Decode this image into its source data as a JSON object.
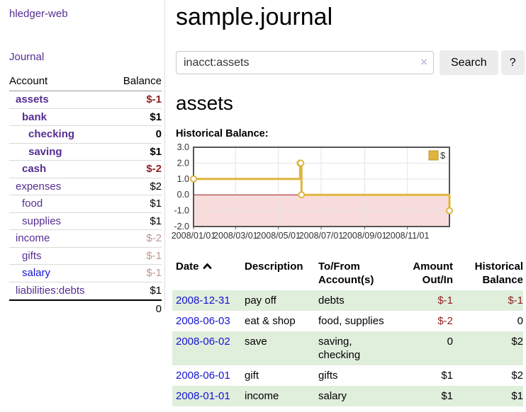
{
  "colors": {
    "link_purple": "#552e91",
    "link_blue": "#1414d2",
    "negative": "#8f1f1f",
    "dim_negative": "#c09494",
    "row_highlight": "#e0eedc",
    "button_bg": "#ececec",
    "clear_icon": "#cfc2e0"
  },
  "sidebar": {
    "app_title": "hledger-web",
    "journal_label": "Journal",
    "accounts_table": {
      "account_header": "Account",
      "balance_header": "Balance",
      "rows": [
        {
          "name": "assets",
          "indent": 1,
          "bold": true,
          "balance": "$-1",
          "negative": true
        },
        {
          "name": "bank",
          "indent": 2,
          "bold": true,
          "balance": "$1"
        },
        {
          "name": "checking",
          "indent": 3,
          "bold": true,
          "balance": "0"
        },
        {
          "name": "saving",
          "indent": 3,
          "bold": true,
          "balance": "$1"
        },
        {
          "name": "cash",
          "indent": 2,
          "bold": true,
          "balance": "$-2",
          "negative": true
        },
        {
          "name": "expenses",
          "indent": 1,
          "balance": "$2"
        },
        {
          "name": "food",
          "indent": 2,
          "balance": "$1"
        },
        {
          "name": "supplies",
          "indent": 2,
          "balance": "$1"
        },
        {
          "name": "income",
          "indent": 1,
          "balance": "$-2",
          "dim": true
        },
        {
          "name": "gifts",
          "indent": 2,
          "balance": "$-1",
          "dim": true
        },
        {
          "name": "salary",
          "indent": 2,
          "balance": "$-1",
          "dim": true,
          "blue": true
        },
        {
          "name": "liabilities:debts",
          "indent": 1,
          "balance": "$1"
        }
      ],
      "total": "0"
    }
  },
  "header": {
    "title": "sample.journal"
  },
  "search": {
    "query": "inacct:assets",
    "clear_icon": "×",
    "search_button": "Search",
    "help_button": "?"
  },
  "account_page": {
    "heading": "assets",
    "chart_label": "Historical Balance:"
  },
  "chart_data": {
    "type": "line",
    "step": true,
    "title": "Historical Balance:",
    "series": [
      {
        "name": "$",
        "color": "#dfb53e",
        "points": [
          [
            "2008-01-01",
            1
          ],
          [
            "2008-06-01",
            2
          ],
          [
            "2008-06-02",
            2
          ],
          [
            "2008-06-03",
            0
          ],
          [
            "2008-12-31",
            -1
          ]
        ]
      }
    ],
    "x_range": [
      "2008-01-01",
      "2008-12-31"
    ],
    "ylim": [
      -2,
      3
    ],
    "y_ticks": [
      "3.0",
      "2.0",
      "1.0",
      "0.0",
      "-1.0",
      "-2.0"
    ],
    "x_ticks": [
      "2008/01/01",
      "2008/03/01",
      "2008/05/01",
      "2008/07/01",
      "2008/09/01",
      "2008/11/01"
    ],
    "legend": {
      "position": "top-right",
      "label": "$"
    },
    "grid": true,
    "negative_zone_color": "#f9dcdc",
    "zero_line_color": "#9b1b1b"
  },
  "register_table": {
    "columns": [
      "Date",
      "Description",
      "To/From Account(s)",
      "Amount Out/In",
      "Historical Balance"
    ],
    "sort_column": "Date",
    "sort_direction": "ascending",
    "rows": [
      {
        "date": "2008-12-31",
        "description": "pay off",
        "accounts": "debts",
        "amount": "$-1",
        "amount_negative": true,
        "balance": "$-1",
        "balance_negative": true,
        "highlight": true
      },
      {
        "date": "2008-06-03",
        "description": "eat & shop",
        "accounts": "food, supplies",
        "amount": "$-2",
        "amount_negative": true,
        "balance": "0",
        "highlight": false
      },
      {
        "date": "2008-06-02",
        "description": "save",
        "accounts": "saving, checking",
        "amount": "0",
        "balance": "$2",
        "highlight": true
      },
      {
        "date": "2008-06-01",
        "description": "gift",
        "accounts": "gifts",
        "amount": "$1",
        "balance": "$2",
        "highlight": false
      },
      {
        "date": "2008-01-01",
        "description": "income",
        "accounts": "salary",
        "amount": "$1",
        "balance": "$1",
        "highlight": true
      }
    ]
  }
}
